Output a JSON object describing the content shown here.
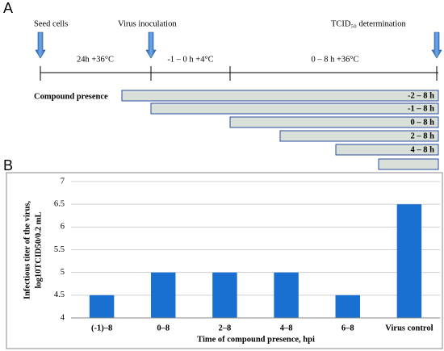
{
  "panel_a": {
    "label": "A",
    "events": [
      "Seed cells",
      "Virus inoculation",
      "TCID₅₀ determination"
    ],
    "phases": [
      "24h +36°C",
      "-1 – 0 h +4°C",
      "0 – 8 h +36°C"
    ],
    "compound_label": "Compound presence",
    "bars": [
      "-2 – 8 h",
      "-1 – 8 h",
      "0 – 8 h",
      "2 – 8 h",
      "4 – 8 h"
    ]
  },
  "chart_data": {
    "type": "bar",
    "panel_label": "B",
    "ylabel": [
      "Infectious titer of the virus,",
      "log10TCID50/0.2 mL"
    ],
    "xlabel": "Time of compound presence, hpi",
    "categories": [
      "(-1)–8",
      "0–8",
      "2–8",
      "4–8",
      "6–8",
      "Virus control"
    ],
    "values": [
      4.5,
      5,
      5,
      5,
      4.5,
      6.5
    ],
    "color": "#1a70d1",
    "ylim": [
      4,
      7
    ],
    "yticks": [
      4,
      4.5,
      5,
      5.5,
      6,
      6.5,
      7
    ],
    "grid": true
  }
}
